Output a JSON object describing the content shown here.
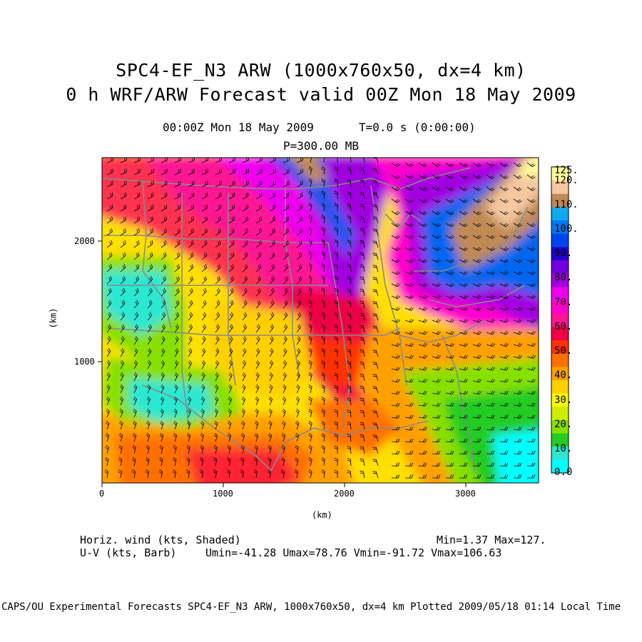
{
  "header": {
    "title_line1": "SPC4-EF_N3 ARW (1000x760x50, dx=4 km)",
    "title_line2": "0 h WRF/ARW Forecast valid 00Z Mon 18 May 2009",
    "valid_time": "00:00Z Mon 18 May 2009",
    "time_seconds": "T=0.0 s (0:00:00)",
    "pressure_level": "P=300.00 MB"
  },
  "map": {
    "x_axis_label": "(km)",
    "y_axis_label": "(km)",
    "x_ticks": [
      "0",
      "1000",
      "2000",
      "3000"
    ],
    "y_ticks": [
      "1000",
      "2000"
    ],
    "field": "horizontal wind speed at 300 mb over the continental United States"
  },
  "colorbar": {
    "labels": [
      "0.0",
      "10.",
      "20.",
      "30.",
      "40.",
      "50.",
      "60.",
      "70.",
      "80.",
      "90.",
      "100.",
      "110.",
      "120.",
      "125."
    ],
    "colors": [
      "#00ffff",
      "#2ae8d2",
      "#22cc22",
      "#88e000",
      "#ccee00",
      "#ffff00",
      "#ffd000",
      "#ffa000",
      "#ff7000",
      "#ff3000",
      "#ee0044",
      "#ff1493",
      "#ff00cc",
      "#ee00ee",
      "#a000e0",
      "#7000dd",
      "#2200cc",
      "#0044ee",
      "#0077ee",
      "#11a8ee",
      "#c08a55",
      "#f5c8a0",
      "#ffff99"
    ],
    "unit": "kts"
  },
  "footer": {
    "shaded_label": "Horiz. wind (kts, Shaded)",
    "min_max": "Min=1.37 Max=127.",
    "barb_label": "U-V (kts, Barb)",
    "uv_stats": "Umin=-41.28 Umax=78.76 Vmin=-91.72 Vmax=106.63"
  },
  "credits": "CAPS/OU Experimental Forecasts  SPC4-EF_N3 ARW, 1000x760x50, dx=4 km  Plotted 2009/05/18 01:14 Local Time"
}
